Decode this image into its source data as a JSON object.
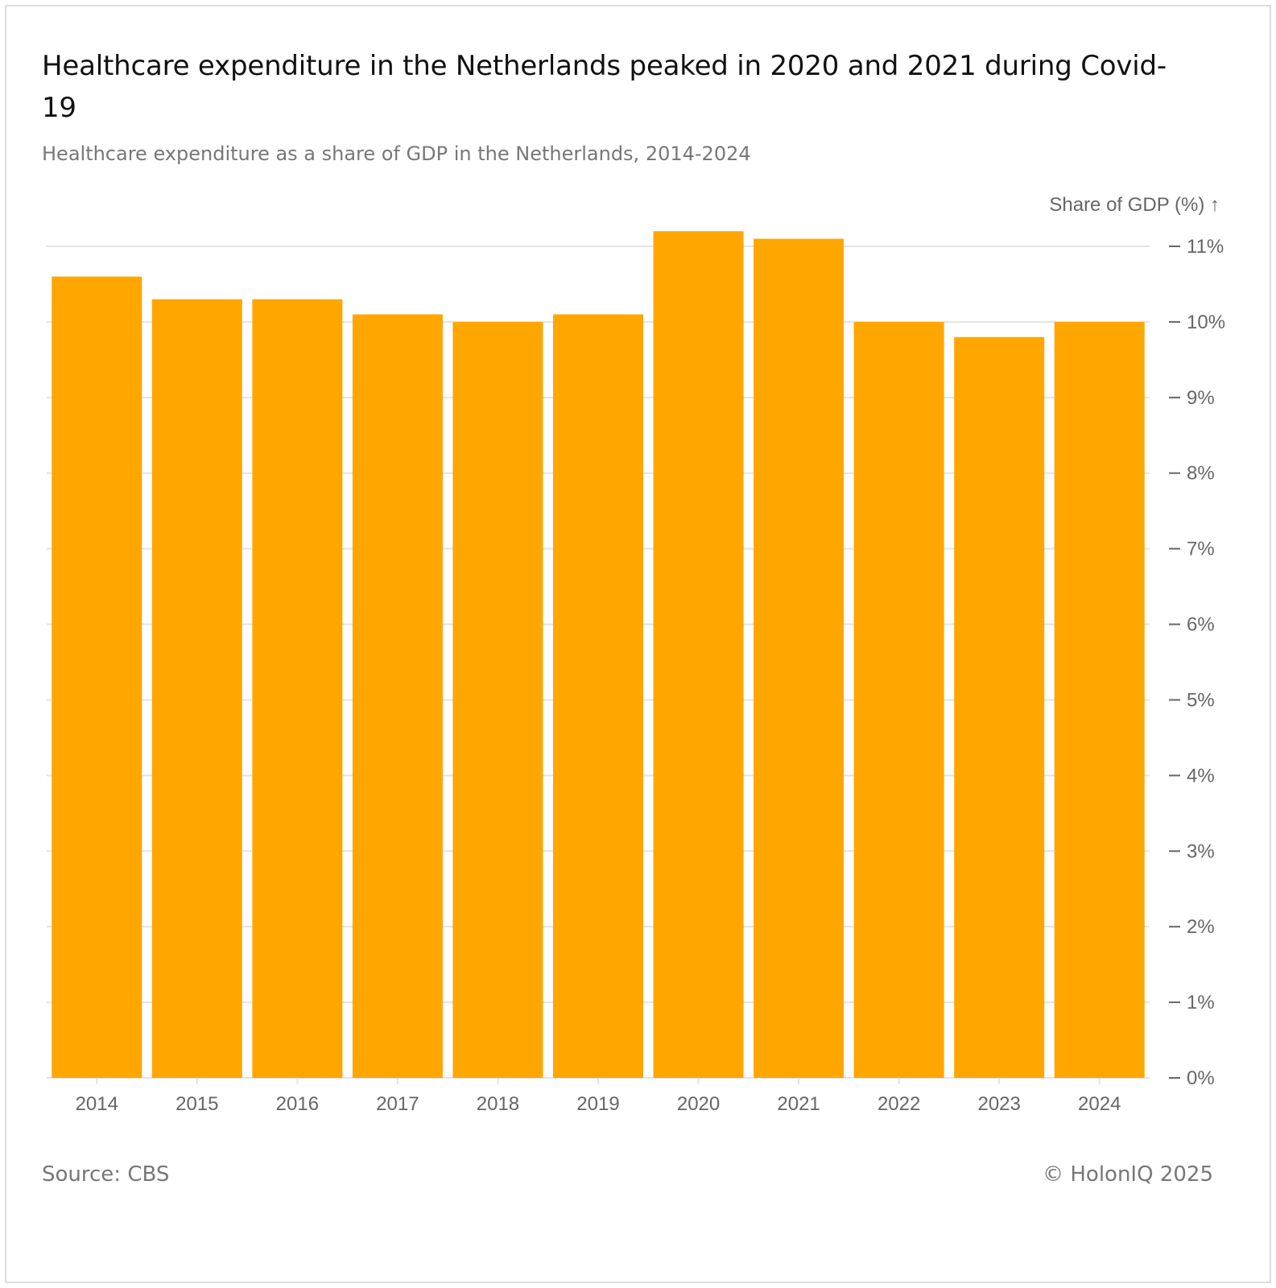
{
  "title": "Healthcare expenditure in the Netherlands peaked in 2020 and 2021 during Covid-19",
  "subtitle": "Healthcare expenditure as a share of GDP in the Netherlands, 2014-2024",
  "source": "Source: CBS",
  "copyright": "© HolonIQ 2025",
  "colors": {
    "bar": "#FFA600",
    "grid": "#e3e3e3",
    "tick_text": "#666666"
  },
  "chart_data": {
    "type": "bar",
    "title": "Healthcare expenditure in the Netherlands peaked in 2020 and 2021 during Covid-19",
    "subtitle": "Healthcare expenditure as a share of GDP in the Netherlands, 2014-2024",
    "xlabel": "",
    "ylabel": "Share of GDP (%) ↑",
    "categories": [
      "2014",
      "2015",
      "2016",
      "2017",
      "2018",
      "2019",
      "2020",
      "2021",
      "2022",
      "2023",
      "2024"
    ],
    "values": [
      10.6,
      10.3,
      10.3,
      10.1,
      10.0,
      10.1,
      11.2,
      11.1,
      10.0,
      9.8,
      10.0
    ],
    "ylim": [
      0,
      11
    ],
    "y_ticks": [
      0,
      1,
      2,
      3,
      4,
      5,
      6,
      7,
      8,
      9,
      10,
      11
    ],
    "y_tick_labels": [
      "0%",
      "1%",
      "2%",
      "3%",
      "4%",
      "5%",
      "6%",
      "7%",
      "8%",
      "9%",
      "10%",
      "11%"
    ],
    "y_axis_side": "right",
    "grid": true,
    "legend": "none"
  }
}
